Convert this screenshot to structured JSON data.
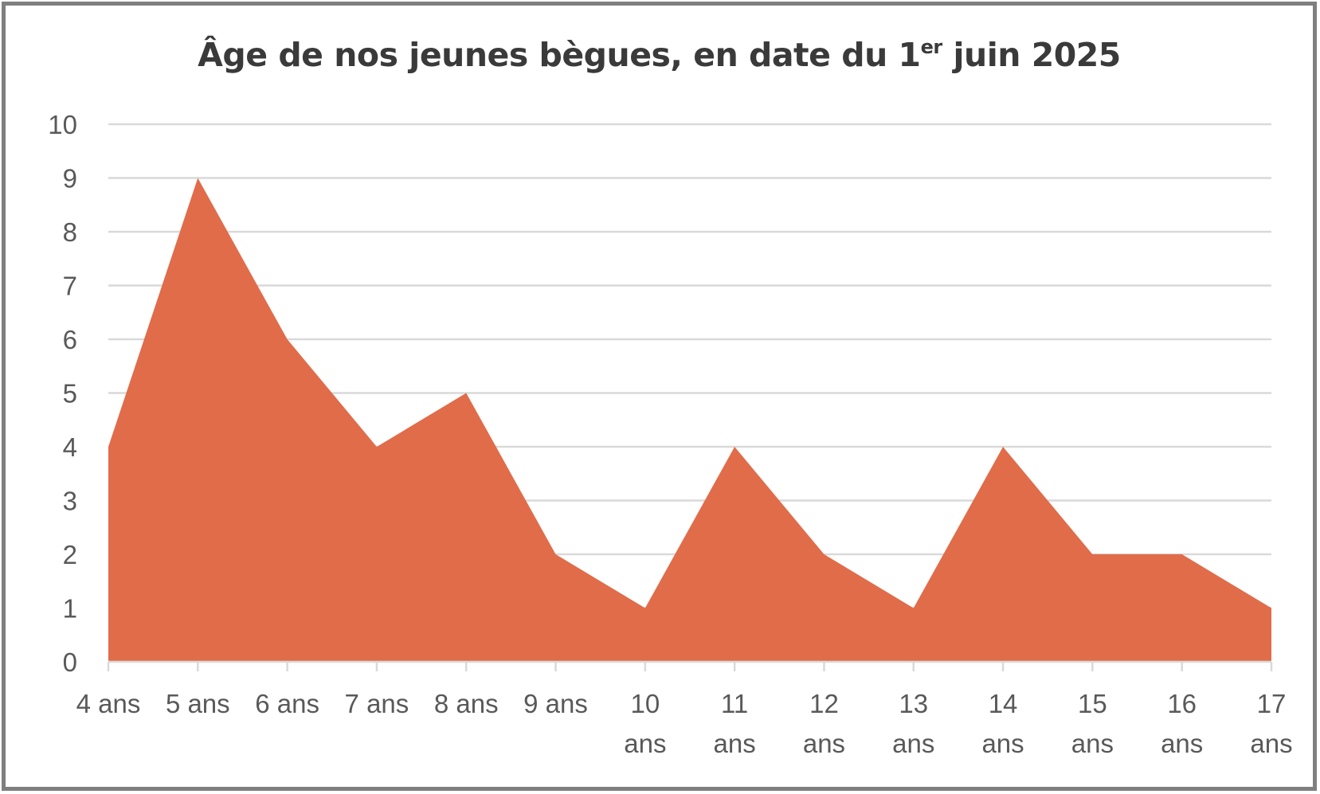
{
  "chart_data": {
    "type": "area",
    "title_main": "Âge de nos jeunes bègues, en date du 1",
    "title_sup": "er",
    "title_tail": " juin 2025",
    "categories": [
      [
        "4 ans"
      ],
      [
        "5 ans"
      ],
      [
        "6 ans"
      ],
      [
        "7 ans"
      ],
      [
        "8 ans"
      ],
      [
        "9 ans"
      ],
      [
        "10",
        "ans"
      ],
      [
        "11",
        "ans"
      ],
      [
        "12",
        "ans"
      ],
      [
        "13",
        "ans"
      ],
      [
        "14",
        "ans"
      ],
      [
        "15",
        "ans"
      ],
      [
        "16",
        "ans"
      ],
      [
        "17",
        "ans"
      ]
    ],
    "values": [
      4,
      9,
      6,
      4,
      5,
      2,
      1,
      4,
      2,
      1,
      4,
      2,
      2,
      1
    ],
    "ylim": [
      0,
      10
    ],
    "yticks": [
      0,
      1,
      2,
      3,
      4,
      5,
      6,
      7,
      8,
      9,
      10
    ],
    "grid": true,
    "legend": "none",
    "colors": {
      "area": "#e06c4a",
      "grid": "#d9d9d9",
      "axis": "#d9d9d9",
      "text": "#595959",
      "title": "#3a3a3a",
      "frame": "#7f7f7f"
    }
  }
}
